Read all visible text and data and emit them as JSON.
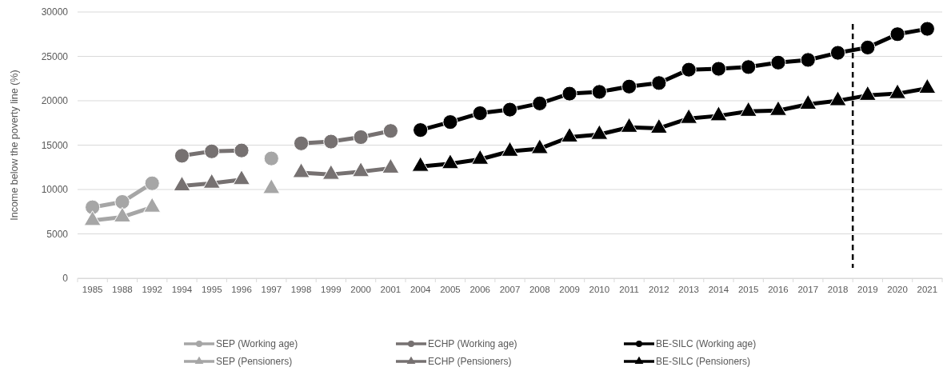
{
  "chart_data": {
    "type": "line",
    "ylabel": "Income below the poverty line (%)",
    "categories": [
      "1985",
      "1988",
      "1992",
      "1994",
      "1995",
      "1996",
      "1997",
      "1998",
      "1999",
      "2000",
      "2001",
      "2004",
      "2005",
      "2006",
      "2007",
      "2008",
      "2009",
      "2010",
      "2011",
      "2012",
      "2013",
      "2014",
      "2015",
      "2016",
      "2017",
      "2018",
      "2019",
      "2020",
      "2021"
    ],
    "series": [
      {
        "name": "SEP (Working age)",
        "color": "#a6a6a6",
        "marker": "circle",
        "values": [
          8000,
          8600,
          10700,
          null,
          null,
          null,
          13500,
          null,
          null,
          null,
          null,
          null,
          null,
          null,
          null,
          null,
          null,
          null,
          null,
          null,
          null,
          null,
          null,
          null,
          null,
          null,
          null,
          null,
          null
        ]
      },
      {
        "name": "ECHP (Working age)",
        "color": "#767171",
        "marker": "circle",
        "values": [
          null,
          null,
          null,
          13800,
          14300,
          14400,
          null,
          15200,
          15400,
          15900,
          16600,
          null,
          null,
          null,
          null,
          null,
          null,
          null,
          null,
          null,
          null,
          null,
          null,
          null,
          null,
          null,
          null,
          null,
          null
        ]
      },
      {
        "name": "BE-SILC  (Working age)",
        "color": "#000000",
        "marker": "circle",
        "values": [
          null,
          null,
          null,
          null,
          null,
          null,
          null,
          null,
          null,
          null,
          null,
          16700,
          17600,
          18600,
          19000,
          19700,
          20800,
          21000,
          21600,
          22000,
          23500,
          23600,
          23800,
          24300,
          24600,
          25400,
          26000,
          27500,
          28100
        ]
      },
      {
        "name": "SEP (Pensioners)",
        "color": "#a6a6a6",
        "marker": "triangle",
        "values": [
          6500,
          6900,
          8000,
          null,
          null,
          null,
          10100,
          null,
          null,
          null,
          null,
          null,
          null,
          null,
          null,
          null,
          null,
          null,
          null,
          null,
          null,
          null,
          null,
          null,
          null,
          null,
          null,
          null,
          null
        ]
      },
      {
        "name": "ECHP (Pensioners)",
        "color": "#767171",
        "marker": "triangle",
        "values": [
          null,
          null,
          null,
          10400,
          10700,
          11100,
          null,
          11900,
          11700,
          12000,
          12400,
          null,
          null,
          null,
          null,
          null,
          null,
          null,
          null,
          null,
          null,
          null,
          null,
          null,
          null,
          null,
          null,
          null,
          null
        ]
      },
      {
        "name": "BE-SILC (Pensioners)",
        "color": "#000000",
        "marker": "triangle",
        "values": [
          null,
          null,
          null,
          null,
          null,
          null,
          null,
          null,
          null,
          null,
          null,
          12600,
          12900,
          13400,
          14300,
          14600,
          15900,
          16200,
          17000,
          16900,
          18000,
          18300,
          18800,
          18900,
          19600,
          20000,
          20600,
          20800,
          21400
        ]
      }
    ],
    "ylim": [
      0,
      30000
    ],
    "yticks": [
      0,
      5000,
      10000,
      15000,
      20000,
      25000,
      30000
    ],
    "grid": "y",
    "legend": "bottom",
    "line_style": "solid",
    "ref_lines": [
      {
        "axis": "x",
        "value": "2019",
        "color": "#000000",
        "line_style": "dashed"
      }
    ]
  }
}
